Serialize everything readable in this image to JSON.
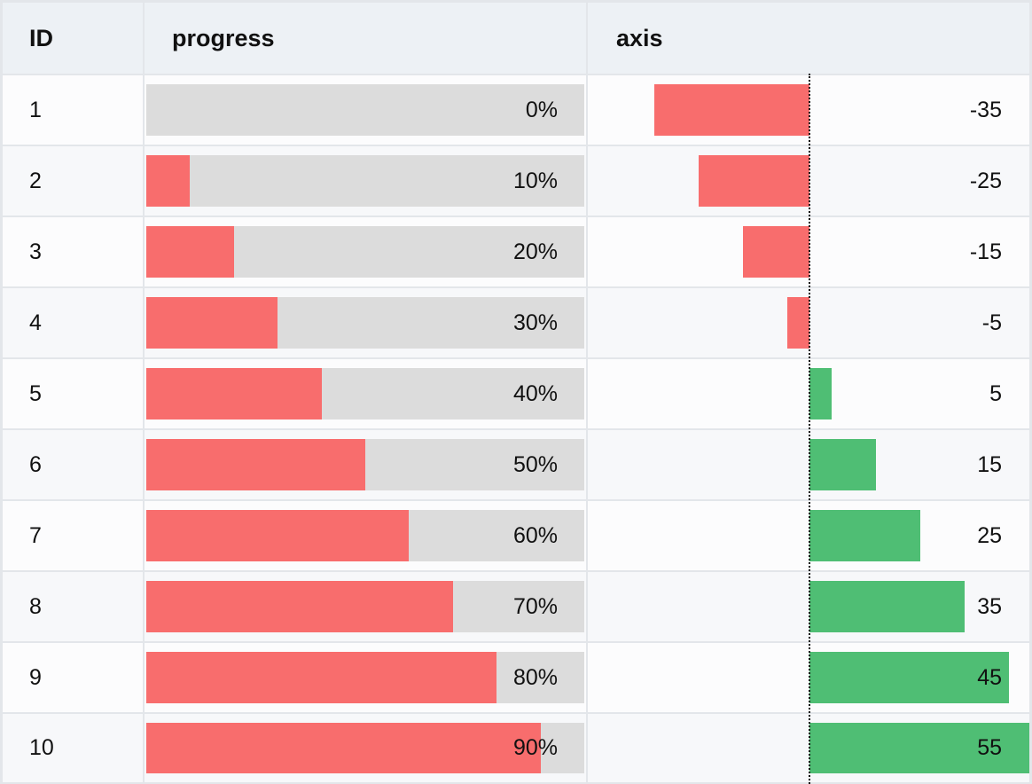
{
  "table": {
    "columns": {
      "id": "ID",
      "progress": "progress",
      "axis": "axis"
    },
    "rows": [
      {
        "id": "1",
        "progress_label": "0%",
        "progress": 0.0,
        "axis_label": "-35",
        "axis": -35
      },
      {
        "id": "2",
        "progress_label": "10%",
        "progress": 0.1,
        "axis_label": "-25",
        "axis": -25
      },
      {
        "id": "3",
        "progress_label": "20%",
        "progress": 0.2,
        "axis_label": "-15",
        "axis": -15
      },
      {
        "id": "4",
        "progress_label": "30%",
        "progress": 0.3,
        "axis_label": "-5",
        "axis": -5
      },
      {
        "id": "5",
        "progress_label": "40%",
        "progress": 0.4,
        "axis_label": "5",
        "axis": 5
      },
      {
        "id": "6",
        "progress_label": "50%",
        "progress": 0.5,
        "axis_label": "15",
        "axis": 15
      },
      {
        "id": "7",
        "progress_label": "60%",
        "progress": 0.6,
        "axis_label": "25",
        "axis": 25
      },
      {
        "id": "8",
        "progress_label": "70%",
        "progress": 0.7,
        "axis_label": "35",
        "axis": 35
      },
      {
        "id": "9",
        "progress_label": "80%",
        "progress": 0.8,
        "axis_label": "45",
        "axis": 45
      },
      {
        "id": "10",
        "progress_label": "90%",
        "progress": 0.9,
        "axis_label": "55",
        "axis": 55
      }
    ]
  },
  "colors": {
    "negative": "#f86d6d",
    "positive": "#4fbe74",
    "track": "#dcdcdc",
    "header_bg": "#edf1f5"
  }
}
